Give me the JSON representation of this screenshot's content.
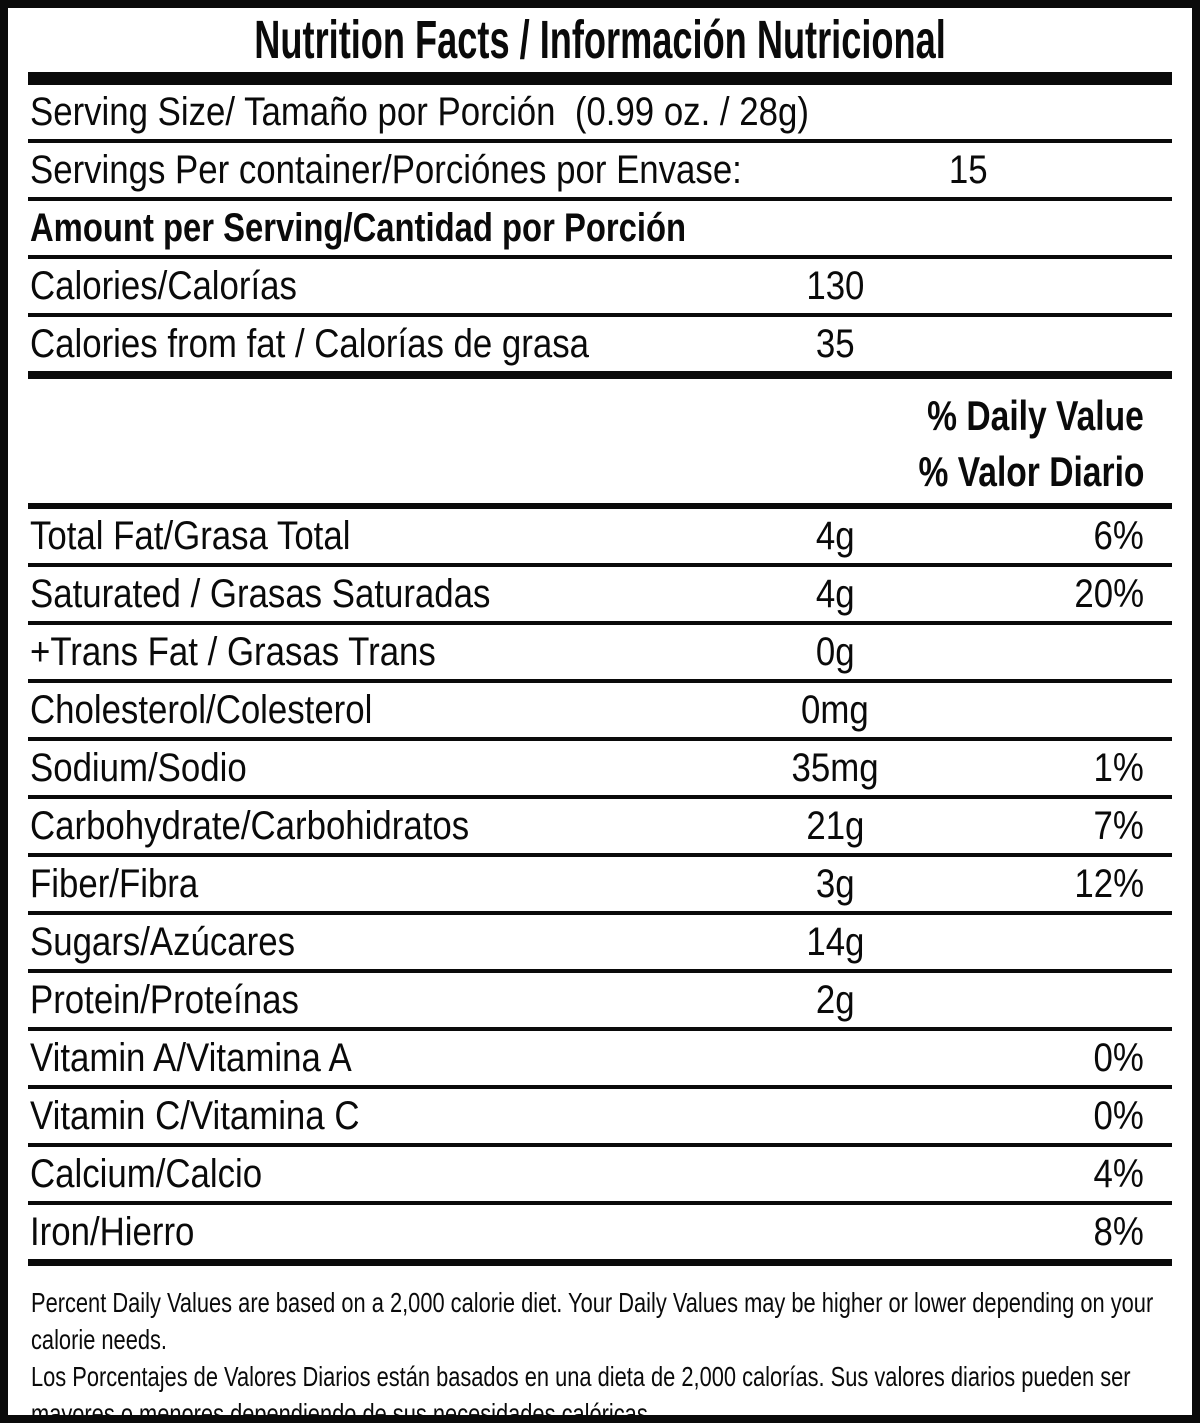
{
  "header": {
    "title": "Nutrition Facts / Información Nutricional"
  },
  "serving": {
    "size_label": "Serving Size/ Tamaño por Porción  (0.99 oz. / 28g)",
    "per_container_label": "Servings Per container/Porciónes por Envase:",
    "per_container_value": "15"
  },
  "amount_section": {
    "heading": "Amount per Serving/Cantidad por Porción",
    "rows": [
      {
        "label": "Calories/Calorías",
        "amount": "130"
      },
      {
        "label": "Calories from fat / Calorías de grasa",
        "amount": "35"
      }
    ]
  },
  "daily_value_header": {
    "line1": "% Daily Value",
    "line2": "% Valor Diario"
  },
  "nutrients": [
    {
      "label": "Total Fat/Grasa Total",
      "amount": "4g",
      "dv": "6%"
    },
    {
      "label": "Saturated / Grasas Saturadas",
      "amount": "4g",
      "dv": "20%"
    },
    {
      "label": "+Trans Fat / Grasas Trans",
      "amount": "0g",
      "dv": ""
    },
    {
      "label": "Cholesterol/Colesterol",
      "amount": "0mg",
      "dv": ""
    },
    {
      "label": "Sodium/Sodio",
      "amount": "35mg",
      "dv": "1%"
    },
    {
      "label": "Carbohydrate/Carbohidratos",
      "amount": "21g",
      "dv": "7%"
    },
    {
      "label": "Fiber/Fibra",
      "amount": "3g",
      "dv": "12%"
    },
    {
      "label": "Sugars/Azúcares",
      "amount": "14g",
      "dv": ""
    },
    {
      "label": "Protein/Proteínas",
      "amount": "2g",
      "dv": ""
    },
    {
      "label": "Vitamin A/Vitamina A",
      "amount": "",
      "dv": "0%"
    },
    {
      "label": "Vitamin C/Vitamina C",
      "amount": "",
      "dv": "0%"
    },
    {
      "label": "Calcium/Calcio",
      "amount": "",
      "dv": "4%"
    },
    {
      "label": "Iron/Hierro",
      "amount": "",
      "dv": "8%"
    }
  ],
  "footnote": {
    "english": "Percent Daily Values are based on a 2,000 calorie diet. Your Daily Values may be higher or lower depending on your\ncalorie needs.",
    "spanish": "Los Porcentajes de Valores Diarios están basados en una dieta de 2,000 calorías. Sus valores diarios pueden ser\nmayores o menores dependiendo de sus necesidades calóricas"
  }
}
